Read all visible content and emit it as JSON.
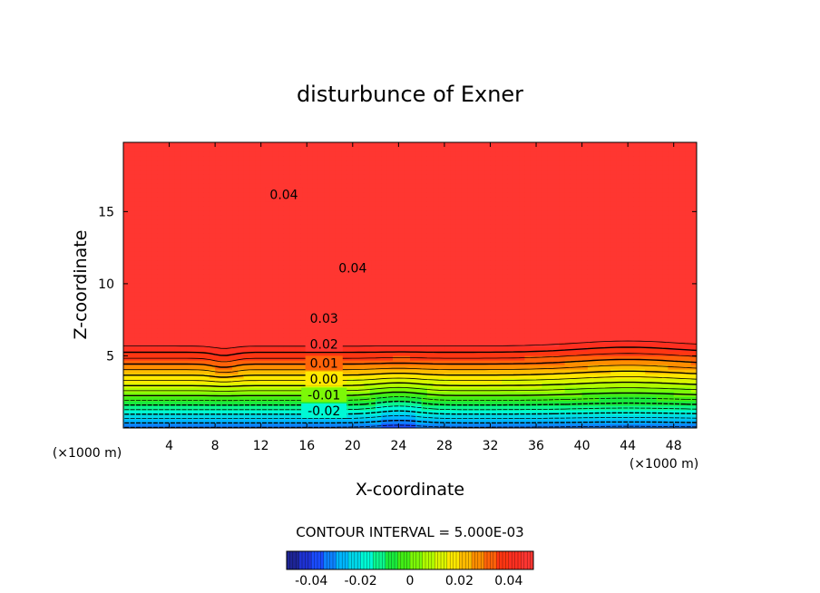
{
  "chart_data": {
    "type": "heatmap",
    "title": "disturbunce of Exner",
    "xlabel": "X-coordinate",
    "ylabel": "Z-coordinate",
    "x_unit": "(×1000 m)",
    "y_unit": "(×1000 m)",
    "xlim": [
      0,
      50
    ],
    "ylim": [
      0,
      19.8
    ],
    "x_ticks": [
      4,
      8,
      12,
      16,
      20,
      24,
      28,
      32,
      36,
      40,
      44,
      48
    ],
    "x_tick_labels": [
      "4",
      "8",
      "12",
      "16",
      "20",
      "24",
      "28",
      "32",
      "36",
      "40",
      "44",
      "48"
    ],
    "y_ticks": [
      5,
      10,
      15
    ],
    "y_tick_labels": [
      "5",
      "10",
      "15"
    ],
    "contour_interval_text": "CONTOUR INTERVAL = 5.000E-03",
    "contour_labels": [
      {
        "text": "0.04",
        "x": 14.0,
        "z": 16.2
      },
      {
        "text": "0.04",
        "x": 20.0,
        "z": 11.1
      },
      {
        "text": "0.03",
        "x": 17.5,
        "z": 7.6
      },
      {
        "text": "0.02",
        "x": 17.5,
        "z": 5.8
      },
      {
        "text": "0.01",
        "x": 17.5,
        "z": 4.5
      },
      {
        "text": "0.00",
        "x": 17.5,
        "z": 3.4
      },
      {
        "text": "-0.01",
        "x": 17.5,
        "z": 2.3
      },
      {
        "text": "-0.02",
        "x": 17.5,
        "z": 1.2
      }
    ],
    "colorbar": {
      "range": [
        -0.05,
        0.05
      ],
      "tick_values": [
        -0.04,
        -0.02,
        0,
        0.02,
        0.04
      ],
      "tick_labels": [
        "-0.04",
        "-0.02",
        "0",
        "0.02",
        "0.04"
      ]
    },
    "grid": false,
    "colormap": [
      "#1e1e78",
      "#1e3cff",
      "#00b4ff",
      "#00ffd2",
      "#1ee61e",
      "#a0ff00",
      "#fff000",
      "#ff8c00",
      "#ff2a14",
      "#ff3a3a"
    ]
  }
}
